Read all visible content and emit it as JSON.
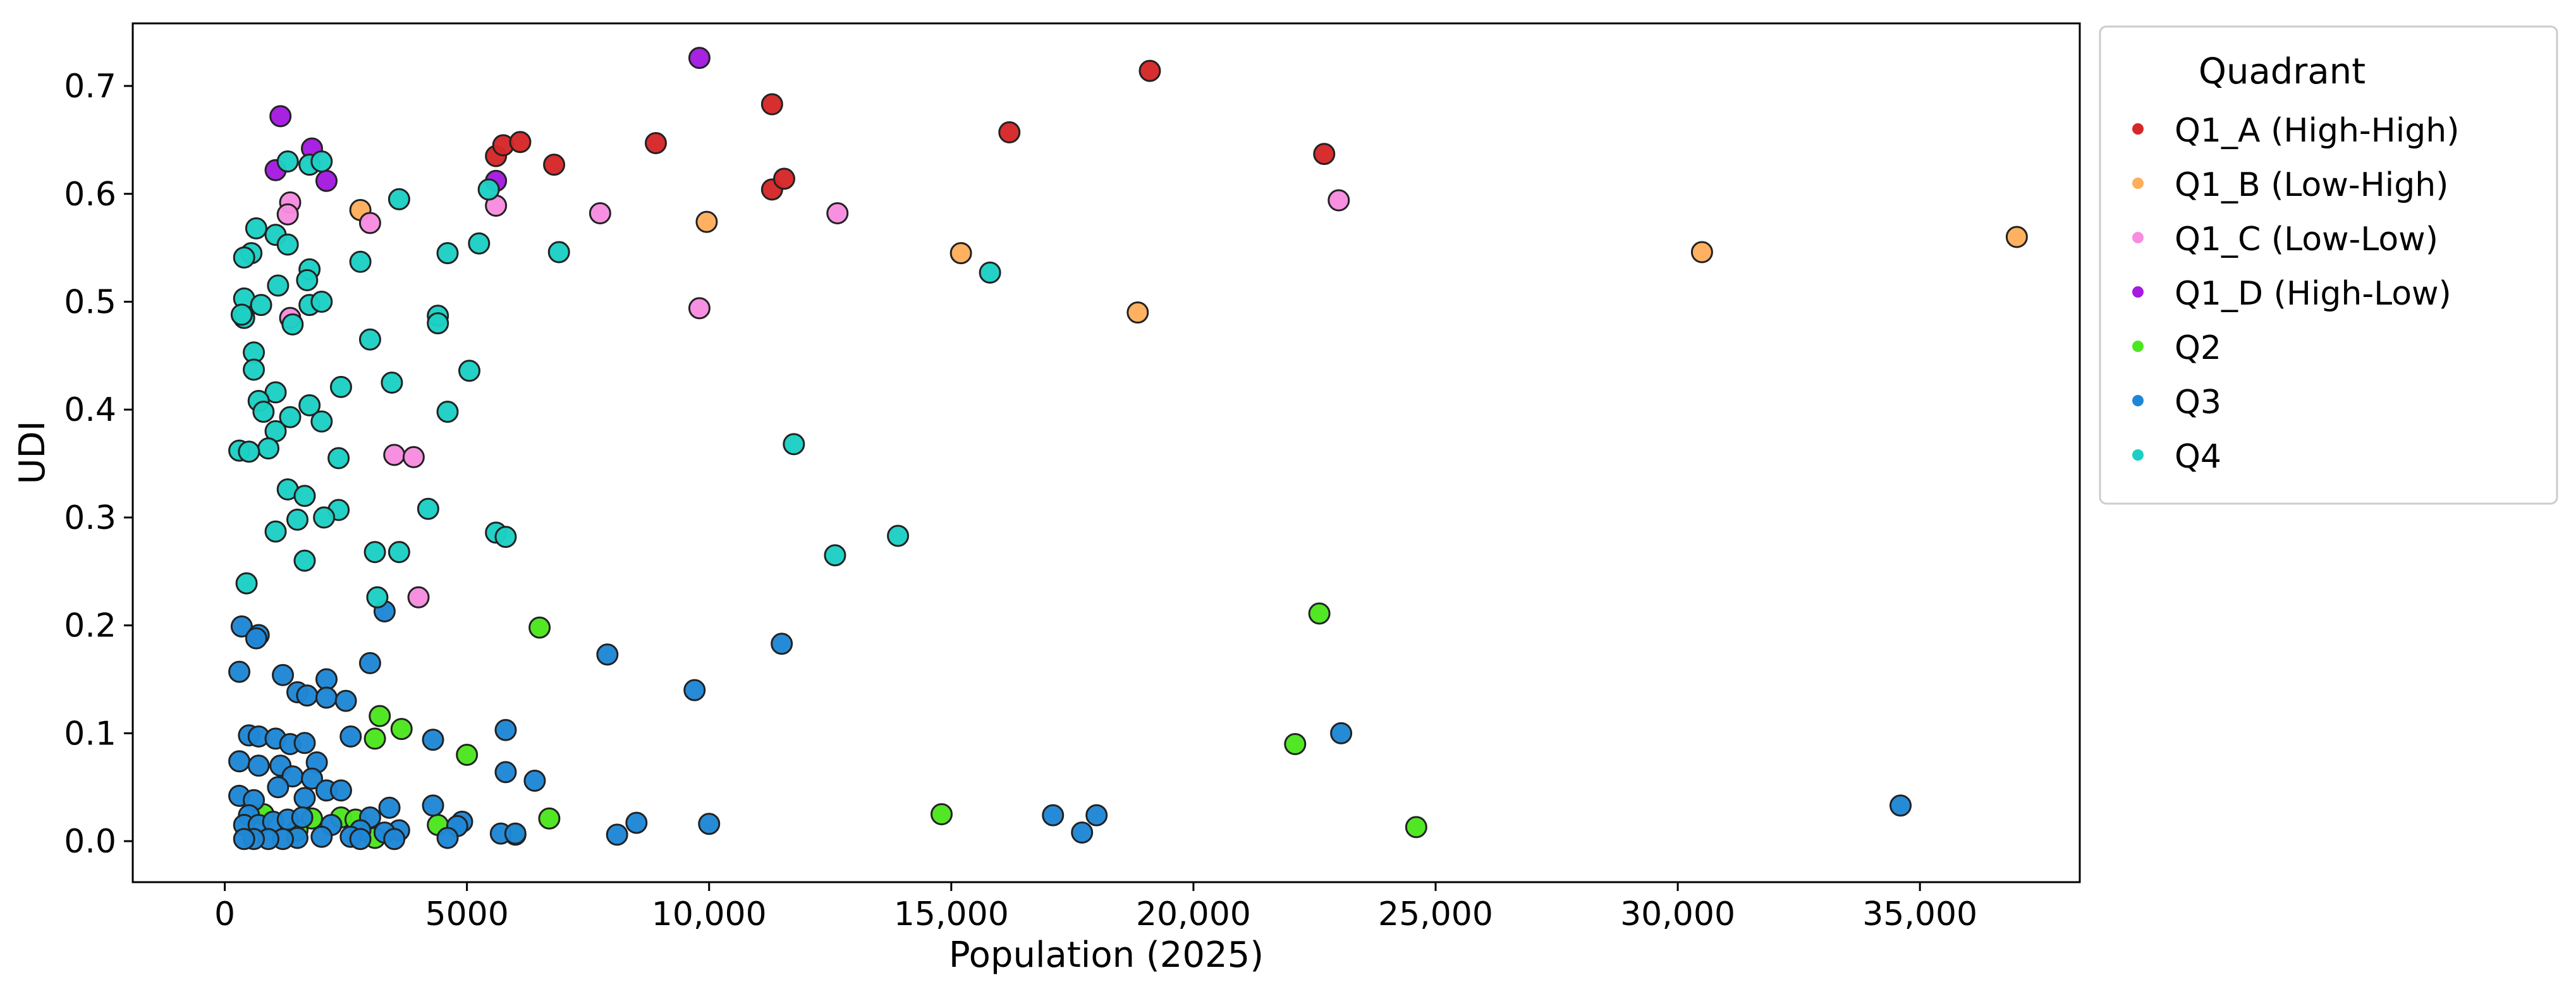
{
  "chart_data": {
    "type": "scatter",
    "title": "",
    "xlabel": "Population (2025)",
    "ylabel": "UDI",
    "xlim": [
      -1900,
      38300
    ],
    "ylim": [
      -0.038,
      0.758
    ],
    "xticks": [
      0,
      5000,
      10000,
      15000,
      20000,
      25000,
      30000,
      35000
    ],
    "xtick_labels": [
      "0",
      "5000",
      "10,000",
      "15,000",
      "20,000",
      "25,000",
      "30,000",
      "35,000"
    ],
    "yticks": [
      0.0,
      0.1,
      0.2,
      0.3,
      0.4,
      0.5,
      0.6,
      0.7
    ],
    "ytick_labels": [
      "0.0",
      "0.1",
      "0.2",
      "0.3",
      "0.4",
      "0.5",
      "0.6",
      "0.7"
    ],
    "grid": false,
    "legend": {
      "title": "Quadrant",
      "placement": "outside-right"
    },
    "series": [
      {
        "name": "Q1_A (High-High)",
        "color": "#d62728",
        "points": [
          [
            5600,
            0.635
          ],
          [
            5750,
            0.645
          ],
          [
            6100,
            0.648
          ],
          [
            6800,
            0.627
          ],
          [
            8900,
            0.647
          ],
          [
            11300,
            0.683
          ],
          [
            11300,
            0.604
          ],
          [
            11550,
            0.614
          ],
          [
            16200,
            0.657
          ],
          [
            19100,
            0.714
          ],
          [
            22700,
            0.637
          ]
        ]
      },
      {
        "name": "Q1_B (Low-High)",
        "color": "#ffae5c",
        "points": [
          [
            2800,
            0.585
          ],
          [
            9950,
            0.574
          ],
          [
            15200,
            0.545
          ],
          [
            18850,
            0.49
          ],
          [
            30500,
            0.546
          ],
          [
            37000,
            0.56
          ]
        ]
      },
      {
        "name": "Q1_C (Low-Low)",
        "color": "#f78ce0",
        "points": [
          [
            1350,
            0.592
          ],
          [
            1300,
            0.581
          ],
          [
            1350,
            0.485
          ],
          [
            3000,
            0.573
          ],
          [
            3500,
            0.358
          ],
          [
            3900,
            0.356
          ],
          [
            4000,
            0.226
          ],
          [
            5600,
            0.589
          ],
          [
            7750,
            0.582
          ],
          [
            9800,
            0.494
          ],
          [
            12650,
            0.582
          ],
          [
            23000,
            0.594
          ]
        ]
      },
      {
        "name": "Q1_D (High-Low)",
        "color": "#a51be0",
        "points": [
          [
            1150,
            0.672
          ],
          [
            1050,
            0.622
          ],
          [
            1800,
            0.642
          ],
          [
            2100,
            0.612
          ],
          [
            5600,
            0.612
          ],
          [
            9800,
            0.726
          ]
        ]
      },
      {
        "name": "Q2",
        "color": "#4ce61e",
        "points": [
          [
            3200,
            0.116
          ],
          [
            3100,
            0.095
          ],
          [
            3650,
            0.104
          ],
          [
            5000,
            0.08
          ],
          [
            6500,
            0.198
          ],
          [
            22600,
            0.211
          ],
          [
            22100,
            0.09
          ],
          [
            24600,
            0.013
          ],
          [
            14800,
            0.025
          ],
          [
            6700,
            0.021
          ],
          [
            6000,
            0.006
          ],
          [
            4400,
            0.015
          ],
          [
            2400,
            0.022
          ],
          [
            2700,
            0.02
          ],
          [
            1800,
            0.021
          ],
          [
            1500,
            0.01
          ],
          [
            800,
            0.025
          ],
          [
            3100,
            0.003
          ]
        ]
      },
      {
        "name": "Q3",
        "color": "#1f87d6",
        "points": [
          [
            350,
            0.199
          ],
          [
            300,
            0.157
          ],
          [
            700,
            0.191
          ],
          [
            650,
            0.188
          ],
          [
            1200,
            0.154
          ],
          [
            1500,
            0.138
          ],
          [
            1700,
            0.135
          ],
          [
            2100,
            0.15
          ],
          [
            2100,
            0.133
          ],
          [
            2500,
            0.13
          ],
          [
            3000,
            0.165
          ],
          [
            3300,
            0.213
          ],
          [
            4300,
            0.094
          ],
          [
            5800,
            0.103
          ],
          [
            5800,
            0.064
          ],
          [
            6400,
            0.056
          ],
          [
            7900,
            0.173
          ],
          [
            9700,
            0.14
          ],
          [
            11500,
            0.183
          ],
          [
            23050,
            0.1
          ],
          [
            300,
            0.074
          ],
          [
            500,
            0.098
          ],
          [
            700,
            0.097
          ],
          [
            1050,
            0.095
          ],
          [
            1350,
            0.09
          ],
          [
            1650,
            0.091
          ],
          [
            1900,
            0.073
          ],
          [
            2600,
            0.097
          ],
          [
            1150,
            0.07
          ],
          [
            700,
            0.07
          ],
          [
            1400,
            0.06
          ],
          [
            1800,
            0.058
          ],
          [
            2100,
            0.047
          ],
          [
            2400,
            0.047
          ],
          [
            300,
            0.042
          ],
          [
            600,
            0.038
          ],
          [
            1100,
            0.05
          ],
          [
            1650,
            0.04
          ],
          [
            3400,
            0.031
          ],
          [
            4300,
            0.033
          ],
          [
            3000,
            0.022
          ],
          [
            4900,
            0.018
          ],
          [
            4800,
            0.014
          ],
          [
            500,
            0.024
          ],
          [
            400,
            0.015
          ],
          [
            700,
            0.015
          ],
          [
            1000,
            0.018
          ],
          [
            1300,
            0.02
          ],
          [
            1600,
            0.022
          ],
          [
            2200,
            0.015
          ],
          [
            2800,
            0.01
          ],
          [
            3600,
            0.01
          ],
          [
            3300,
            0.008
          ],
          [
            5700,
            0.007
          ],
          [
            6000,
            0.007
          ],
          [
            8500,
            0.017
          ],
          [
            8100,
            0.006
          ],
          [
            10000,
            0.016
          ],
          [
            4600,
            0.003
          ],
          [
            2600,
            0.004
          ],
          [
            2000,
            0.004
          ],
          [
            1500,
            0.003
          ],
          [
            1200,
            0.002
          ],
          [
            900,
            0.002
          ],
          [
            600,
            0.002
          ],
          [
            400,
            0.002
          ],
          [
            2800,
            0.002
          ],
          [
            3500,
            0.002
          ],
          [
            17100,
            0.024
          ],
          [
            18000,
            0.024
          ],
          [
            17700,
            0.008
          ],
          [
            34600,
            0.033
          ]
        ]
      },
      {
        "name": "Q4",
        "color": "#1ccfc4",
        "points": [
          [
            1300,
            0.63
          ],
          [
            1750,
            0.627
          ],
          [
            2000,
            0.63
          ],
          [
            5450,
            0.604
          ],
          [
            3600,
            0.595
          ],
          [
            650,
            0.568
          ],
          [
            1050,
            0.562
          ],
          [
            1300,
            0.553
          ],
          [
            550,
            0.545
          ],
          [
            400,
            0.541
          ],
          [
            2800,
            0.537
          ],
          [
            4600,
            0.545
          ],
          [
            5250,
            0.554
          ],
          [
            6900,
            0.546
          ],
          [
            15800,
            0.527
          ],
          [
            1750,
            0.53
          ],
          [
            1700,
            0.52
          ],
          [
            400,
            0.503
          ],
          [
            750,
            0.497
          ],
          [
            1100,
            0.515
          ],
          [
            1750,
            0.497
          ],
          [
            2000,
            0.5
          ],
          [
            400,
            0.485
          ],
          [
            350,
            0.488
          ],
          [
            1400,
            0.479
          ],
          [
            4400,
            0.487
          ],
          [
            4400,
            0.48
          ],
          [
            3000,
            0.465
          ],
          [
            600,
            0.453
          ],
          [
            600,
            0.437
          ],
          [
            5050,
            0.436
          ],
          [
            3450,
            0.425
          ],
          [
            2400,
            0.421
          ],
          [
            1050,
            0.416
          ],
          [
            700,
            0.408
          ],
          [
            800,
            0.398
          ],
          [
            1350,
            0.393
          ],
          [
            1750,
            0.404
          ],
          [
            4600,
            0.398
          ],
          [
            2000,
            0.389
          ],
          [
            1050,
            0.38
          ],
          [
            900,
            0.364
          ],
          [
            300,
            0.362
          ],
          [
            500,
            0.361
          ],
          [
            2350,
            0.355
          ],
          [
            11750,
            0.368
          ],
          [
            1300,
            0.326
          ],
          [
            1650,
            0.32
          ],
          [
            4200,
            0.308
          ],
          [
            2350,
            0.307
          ],
          [
            2050,
            0.3
          ],
          [
            1500,
            0.298
          ],
          [
            1050,
            0.287
          ],
          [
            5600,
            0.286
          ],
          [
            5800,
            0.282
          ],
          [
            13900,
            0.283
          ],
          [
            3100,
            0.268
          ],
          [
            3600,
            0.268
          ],
          [
            12600,
            0.265
          ],
          [
            1650,
            0.26
          ],
          [
            450,
            0.239
          ],
          [
            3150,
            0.226
          ]
        ]
      }
    ]
  }
}
